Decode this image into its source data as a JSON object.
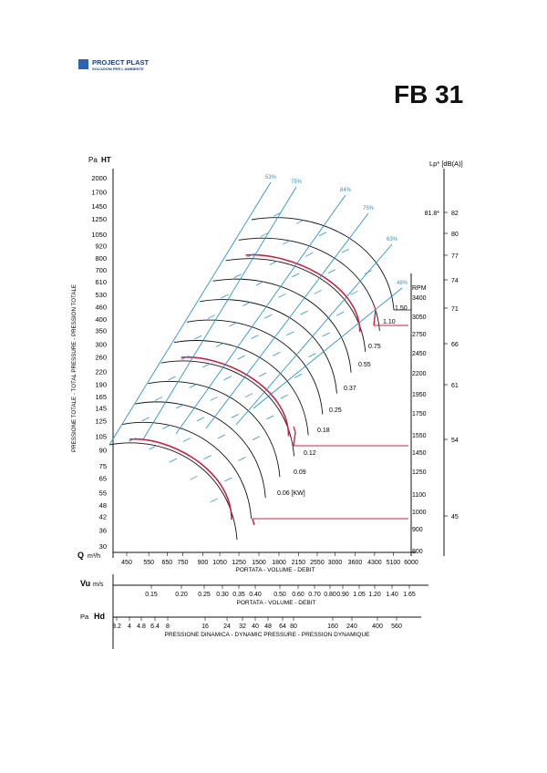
{
  "logo": {
    "name": "PROJECT PLAST",
    "tagline": "SOLUZIONI PER L'AMBIENTE"
  },
  "model": "FB 31",
  "colors": {
    "curve": "#111111",
    "power": "#cc2244",
    "efficiency": "#2a96c8",
    "operating_point": "#cc2244",
    "axis": "#111111"
  },
  "chart_data": {
    "type": "line",
    "pressure_axis": {
      "unit_prefix": "Pa",
      "unit": "HT",
      "ticks": [
        30,
        36,
        42,
        48,
        55,
        65,
        75,
        90,
        105,
        125,
        145,
        165,
        190,
        220,
        260,
        300,
        350,
        400,
        460,
        530,
        610,
        700,
        800,
        920,
        1050,
        1250,
        1450,
        1700,
        2000
      ],
      "label": "PRESSIONE TOTALE - TOTAL PRESSURE - PRESSION TOTALE",
      "scale": "log"
    },
    "flow_axis": {
      "symbol": "Q",
      "unit": "m³/h",
      "ticks": [
        450,
        550,
        650,
        750,
        900,
        1050,
        1250,
        1500,
        1800,
        2150,
        2550,
        3000,
        3600,
        4300,
        5100,
        6000
      ],
      "label": "PORTATA - VOLUME - DEBIT",
      "scale": "log"
    },
    "velocity_axis": {
      "symbol": "Vu",
      "unit": "m/s",
      "ticks": [
        "0.15",
        "0.20",
        "0.25",
        "0.30",
        "0.35",
        "0.40",
        "0.50",
        "0.60",
        "0.70",
        "0.80",
        "0.90",
        "1.05",
        "1.20",
        "1.40",
        "1.65"
      ],
      "label": "PORTATA - VOLUME - DEBIT"
    },
    "dynamic_pressure_axis": {
      "unit_prefix": "Pa",
      "symbol": "Hd",
      "ticks": [
        "3.2",
        "4",
        "4.8",
        "6.4",
        "8",
        "16",
        "24",
        "32",
        "40",
        "48",
        "64",
        "80",
        "160",
        "240",
        "400",
        "560"
      ],
      "label": "PRESSIONE DINAMICA - DYNAMIC PRESSURE - PRESSION DYNAMIQUE"
    },
    "rpm_axis": {
      "label": "RPM",
      "ticks": [
        800,
        900,
        1000,
        1100,
        1250,
        1450,
        1550,
        1750,
        1950,
        2200,
        2450,
        2750,
        3050,
        3400
      ]
    },
    "sound_axis": {
      "label": "Lp* [dB(A)]",
      "ticks": [
        45,
        54,
        61,
        66,
        71,
        74,
        77,
        80,
        82
      ],
      "annotation": "81.8*"
    },
    "efficiency_labels": [
      "53%",
      "75%",
      "84%",
      "75%",
      "63%",
      "48%"
    ],
    "power_labels": [
      "0.06 [KW]",
      "0.09",
      "0.12",
      "0.18",
      "0.25",
      "0.37",
      "0.55",
      "0.75",
      "1.10",
      "1.50"
    ],
    "highlighted_rpm": [
      1000,
      1550,
      2750
    ],
    "fan_curves": [
      {
        "rpm": 1000,
        "points": [
          [
            430,
            46
          ],
          [
            650,
            42
          ],
          [
            850,
            35
          ],
          [
            1000,
            28
          ],
          [
            1100,
            22
          ]
        ]
      },
      {
        "rpm": 1100,
        "points": [
          [
            470,
            56
          ],
          [
            700,
            51
          ],
          [
            930,
            42
          ],
          [
            1100,
            34
          ],
          [
            1210,
            27
          ]
        ]
      },
      {
        "rpm": 1250,
        "points": [
          [
            540,
            72
          ],
          [
            800,
            66
          ],
          [
            1060,
            55
          ],
          [
            1250,
            44
          ],
          [
            1375,
            35
          ]
        ]
      },
      {
        "rpm": 1450,
        "points": [
          [
            620,
            97
          ],
          [
            930,
            89
          ],
          [
            1230,
            74
          ],
          [
            1450,
            59
          ],
          [
            1600,
            47
          ]
        ]
      },
      {
        "rpm": 1550,
        "points": [
          [
            670,
            111
          ],
          [
            1000,
            101
          ],
          [
            1310,
            84
          ],
          [
            1550,
            67
          ],
          [
            1700,
            53
          ]
        ]
      },
      {
        "rpm": 1750,
        "points": [
          [
            750,
            141
          ],
          [
            1130,
            129
          ],
          [
            1480,
            107
          ],
          [
            1750,
            86
          ],
          [
            1920,
            68
          ]
        ]
      },
      {
        "rpm": 1950,
        "points": [
          [
            840,
            175
          ],
          [
            1260,
            160
          ],
          [
            1650,
            133
          ],
          [
            1950,
            106
          ],
          [
            2140,
            84
          ]
        ]
      },
      {
        "rpm": 2200,
        "points": [
          [
            950,
            223
          ],
          [
            1420,
            204
          ],
          [
            1860,
            169
          ],
          [
            2200,
            135
          ],
          [
            2420,
            107
          ]
        ]
      },
      {
        "rpm": 2450,
        "points": [
          [
            1060,
            276
          ],
          [
            1580,
            253
          ],
          [
            2070,
            210
          ],
          [
            2450,
            168
          ],
          [
            2690,
            133
          ]
        ]
      },
      {
        "rpm": 2750,
        "points": [
          [
            1190,
            348
          ],
          [
            1780,
            318
          ],
          [
            2330,
            264
          ],
          [
            2750,
            211
          ],
          [
            3020,
            167
          ]
        ]
      },
      {
        "rpm": 3050,
        "points": [
          [
            1310,
            428
          ],
          [
            1970,
            392
          ],
          [
            2580,
            325
          ],
          [
            3050,
            260
          ],
          [
            3350,
            206
          ]
        ]
      },
      {
        "rpm": 3400,
        "points": [
          [
            1460,
            532
          ],
          [
            2200,
            487
          ],
          [
            2880,
            404
          ],
          [
            3400,
            323
          ],
          [
            3740,
            256
          ]
        ]
      }
    ]
  }
}
